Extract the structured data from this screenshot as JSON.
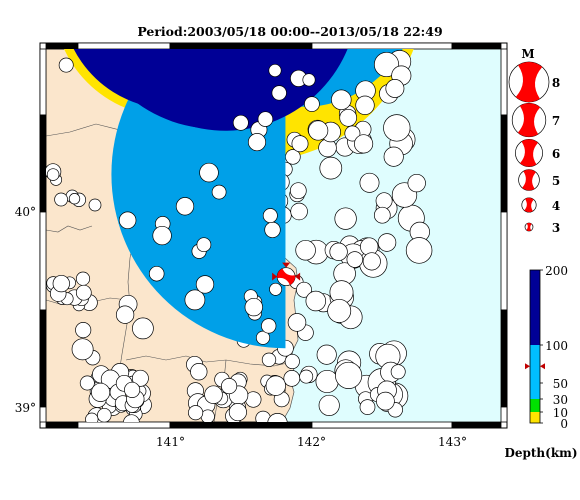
{
  "title": "Period:2003/05/18 00:00--2013/05/18 22:49",
  "map": {
    "lon_ticks": [
      {
        "label": "141°",
        "lon": 141
      },
      {
        "label": "142°",
        "lon": 142
      },
      {
        "label": "143°",
        "lon": 143
      }
    ],
    "lat_ticks": [
      {
        "label": "40°",
        "lat": 40
      },
      {
        "label": "39°",
        "lat": 39
      }
    ],
    "colors": {
      "land": "#fbe6cc",
      "sea": "#dffdfe",
      "border": "#555555",
      "shallow": "#ffe400",
      "mid_shallow": "#00e000",
      "mid": "#00bfff",
      "deep": "#00a0e8",
      "very_deep": "#000096",
      "highlight": "#ff0000"
    },
    "highlight_event": {
      "lon": 141.82,
      "lat": 39.67,
      "magnitude": 5,
      "depth_km": 72
    }
  },
  "magnitude_legend": {
    "header": "M",
    "items": [
      {
        "label": "8",
        "value": 8
      },
      {
        "label": "7",
        "value": 7
      },
      {
        "label": "6",
        "value": 6
      },
      {
        "label": "5",
        "value": 5
      },
      {
        "label": "4",
        "value": 4
      },
      {
        "label": "3",
        "value": 3
      }
    ]
  },
  "depth_legend": {
    "title": "Depth(km)",
    "ticks": [
      {
        "label": "200",
        "value": 200
      },
      {
        "label": "100",
        "value": 100
      },
      {
        "label": "50",
        "value": 50
      },
      {
        "label": "30",
        "value": 30
      },
      {
        "label": "10",
        "value": 10
      },
      {
        "label": "0",
        "value": 0
      }
    ],
    "marker_depth": 72
  }
}
